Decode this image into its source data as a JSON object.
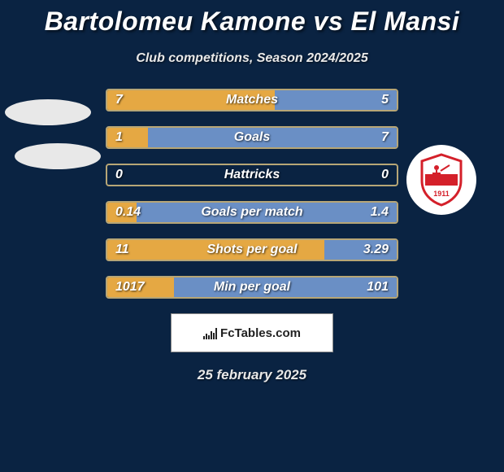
{
  "title": "Bartolomeu Kamone vs El Mansi",
  "subtitle": "Club competitions, Season 2024/2025",
  "date": "25 february 2025",
  "fctables": "FcTables.com",
  "colors": {
    "background": "#0a2342",
    "row_border": "#b7a676",
    "bar_left": "#e5a843",
    "bar_right": "#6a8fc5",
    "oval": "#e8e8e8",
    "badge_bg": "#ffffff",
    "text": "#ffffff",
    "shield_red": "#d4202a",
    "shield_white": "#ffffff"
  },
  "chart": {
    "left_pct_key": "lw",
    "rows": [
      {
        "label": "Matches",
        "left": "7",
        "right": "5",
        "lw": 58,
        "rw": 42
      },
      {
        "label": "Goals",
        "left": "1",
        "right": "7",
        "lw": 14,
        "rw": 86
      },
      {
        "label": "Hattricks",
        "left": "0",
        "right": "0",
        "lw": 0,
        "rw": 0
      },
      {
        "label": "Goals per match",
        "left": "0.14",
        "right": "1.4",
        "lw": 10,
        "rw": 90
      },
      {
        "label": "Shots per goal",
        "left": "11",
        "right": "3.29",
        "lw": 75,
        "rw": 25
      },
      {
        "label": "Min per goal",
        "left": "1017",
        "right": "101",
        "lw": 23,
        "rw": 77
      }
    ]
  },
  "fc_bar_heights": [
    4,
    7,
    5,
    10,
    8,
    14
  ]
}
